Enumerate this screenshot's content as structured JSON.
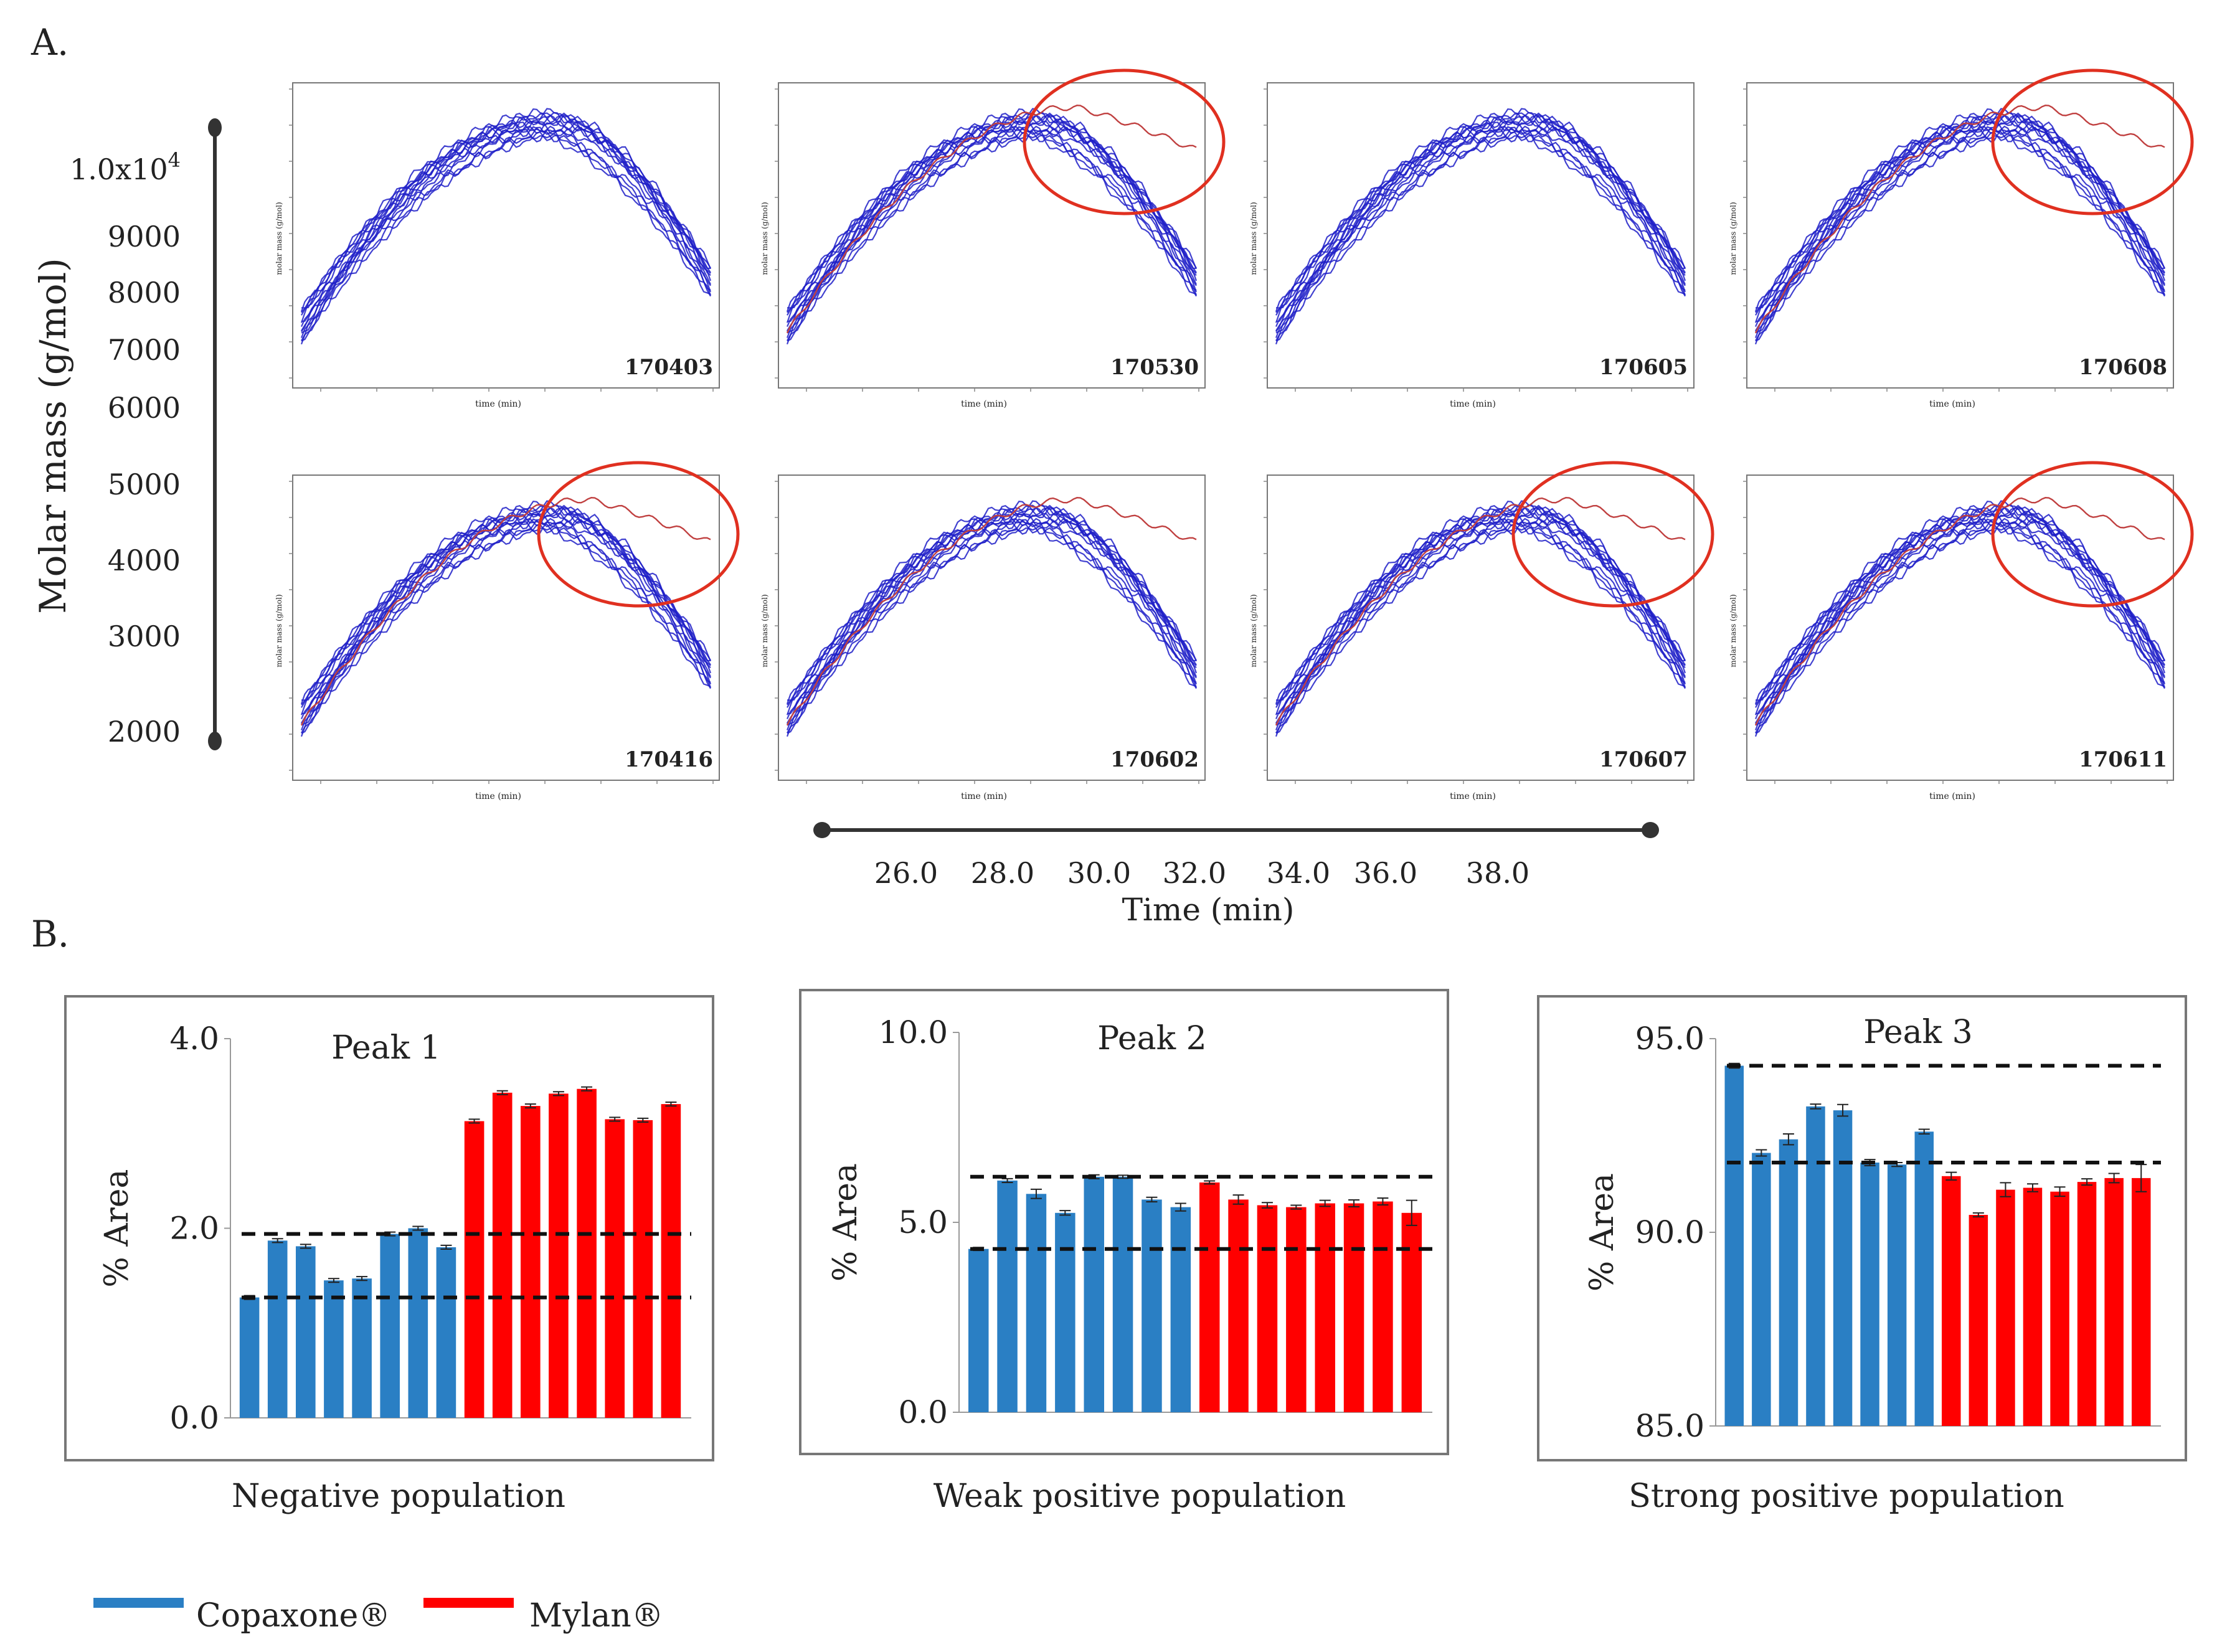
{
  "panel_a": {
    "label": "A.",
    "y_axis_label": "Molar mass (g/mol)",
    "y_axis_top_tick": "1.0x10",
    "y_axis_top_tick_exp": "4",
    "y_axis_ticks": [
      "9000",
      "8000",
      "7000",
      "6000",
      "5000",
      "4000",
      "3000",
      "2000"
    ],
    "x_axis_label": "Time (min)",
    "x_axis_ticks": [
      "26.0",
      "28.0",
      "30.0",
      "32.0",
      "34.0",
      "36.0",
      "38.0"
    ],
    "mini_x_label": "time (min)",
    "mini_y_label": "molar mass (g/mol)",
    "lots": [
      {
        "id": "170403",
        "red_trace": false,
        "highlighted": false
      },
      {
        "id": "170530",
        "red_trace": true,
        "highlighted": true
      },
      {
        "id": "170605",
        "red_trace": false,
        "highlighted": false
      },
      {
        "id": "170608",
        "red_trace": true,
        "highlighted": true
      },
      {
        "id": "170416",
        "red_trace": true,
        "highlighted": true
      },
      {
        "id": "170602",
        "red_trace": true,
        "highlighted": false
      },
      {
        "id": "170607",
        "red_trace": true,
        "highlighted": true
      },
      {
        "id": "170611",
        "red_trace": true,
        "highlighted": true
      }
    ],
    "colors": {
      "trace": "#2020c8",
      "red_trace": "#c04040",
      "circle": "#e03020"
    }
  },
  "panel_b": {
    "label": "B.",
    "legend": [
      {
        "name": "Copaxone®",
        "color": "#2a7fc4"
      },
      {
        "name": "Mylan®",
        "color": "#ff0000"
      }
    ]
  },
  "chart_data": [
    {
      "type": "bar",
      "title": "Peak 1",
      "caption": "Negative population",
      "ylabel": "% Area",
      "ylim": [
        0.0,
        4.0
      ],
      "yticks": [
        "0.0",
        "2.0",
        "4.0"
      ],
      "ytick_values": [
        0.0,
        2.0,
        4.0
      ],
      "series": [
        {
          "name": "Copaxone®",
          "color": "#2a7fc4",
          "values": [
            1.27,
            1.87,
            1.81,
            1.45,
            1.47,
            1.94,
            2.0,
            1.8
          ],
          "errors": [
            0.02,
            0.02,
            0.02,
            0.02,
            0.02,
            0.02,
            0.02,
            0.02
          ]
        },
        {
          "name": "Mylan®",
          "color": "#ff0000",
          "values": [
            3.13,
            3.43,
            3.29,
            3.42,
            3.47,
            3.15,
            3.14,
            3.31
          ],
          "errors": [
            0.02,
            0.02,
            0.02,
            0.02,
            0.02,
            0.02,
            0.02,
            0.02
          ]
        }
      ],
      "reference_lines": [
        1.27,
        1.94
      ]
    },
    {
      "type": "bar",
      "title": "Peak 2",
      "caption": "Weak positive population",
      "ylabel": "% Area",
      "ylim": [
        0.0,
        10.0
      ],
      "yticks": [
        "0.0",
        "5.0",
        "10.0"
      ],
      "ytick_values": [
        0.0,
        5.0,
        10.0
      ],
      "series": [
        {
          "name": "Copaxone®",
          "color": "#2a7fc4",
          "values": [
            4.3,
            6.1,
            5.75,
            5.25,
            6.2,
            6.2,
            5.6,
            5.4
          ],
          "errors": [
            0.04,
            0.05,
            0.12,
            0.06,
            0.05,
            0.04,
            0.06,
            0.1
          ]
        },
        {
          "name": "Mylan®",
          "color": "#ff0000",
          "values": [
            6.05,
            5.6,
            5.45,
            5.4,
            5.5,
            5.5,
            5.55,
            5.25
          ],
          "errors": [
            0.04,
            0.12,
            0.07,
            0.05,
            0.08,
            0.09,
            0.09,
            0.33
          ]
        }
      ],
      "reference_lines": [
        4.3,
        6.2
      ]
    },
    {
      "type": "bar",
      "title": "Peak 3",
      "caption": "Strong positive population",
      "ylabel": "% Area",
      "ylim": [
        85.0,
        95.0
      ],
      "yticks": [
        "85.0",
        "90.0",
        "95.0"
      ],
      "ytick_values": [
        85.0,
        90.0,
        95.0
      ],
      "series": [
        {
          "name": "Copaxone®",
          "color": "#2a7fc4",
          "values": [
            94.3,
            92.05,
            92.4,
            93.25,
            93.15,
            91.8,
            91.75,
            92.6
          ],
          "errors": [
            0.06,
            0.08,
            0.14,
            0.06,
            0.15,
            0.08,
            0.05,
            0.06
          ]
        },
        {
          "name": "Mylan®",
          "color": "#ff0000",
          "values": [
            91.45,
            90.45,
            91.1,
            91.15,
            91.05,
            91.3,
            91.4,
            91.4
          ],
          "errors": [
            0.1,
            0.05,
            0.18,
            0.1,
            0.12,
            0.08,
            0.12,
            0.35
          ]
        }
      ],
      "reference_lines": [
        94.3,
        91.8
      ]
    }
  ]
}
